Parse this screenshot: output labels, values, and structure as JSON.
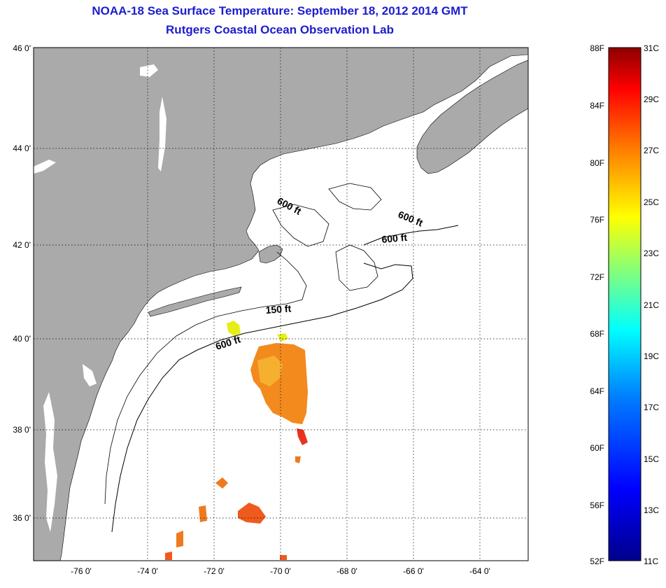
{
  "header": {
    "title": "NOAA-18 Sea Surface Temperature:  September 18, 2012 2014 GMT",
    "subtitle": "Rutgers Coastal Ocean Observation Lab"
  },
  "axes": {
    "lat_labels": [
      "46 0'",
      "44 0'",
      "42 0'",
      "40 0'",
      "38 0'",
      "36 0'"
    ],
    "lon_labels": [
      "-76 0'",
      "-74 0'",
      "-72 0'",
      "-70 0'",
      "-68 0'",
      "-66 0'",
      "-64 0'"
    ]
  },
  "depth_contours": {
    "labels": [
      "600 ft",
      "600 ft",
      "600 ft",
      "150 ft",
      "600 ft"
    ]
  },
  "colorbar": {
    "fahrenheit": [
      "88F",
      "84F",
      "80F",
      "76F",
      "72F",
      "68F",
      "64F",
      "60F",
      "56F",
      "52F"
    ],
    "celsius": [
      "31C",
      "29C",
      "27C",
      "25C",
      "23C",
      "21C",
      "19C",
      "17C",
      "15C",
      "13C",
      "11C"
    ],
    "colors": [
      "#8b0000",
      "#ff0000",
      "#ff7f00",
      "#ffff00",
      "#7fff7f",
      "#00ffff",
      "#007fff",
      "#0000ff",
      "#00008b"
    ]
  },
  "colors": {
    "land": "#aaaaaa",
    "ocean": "#ffffff",
    "title": "#1c1ccf",
    "sst_warm": "#f28a1e",
    "sst_hot": "#e8331e",
    "sst_yellow": "#e6ee1a"
  }
}
